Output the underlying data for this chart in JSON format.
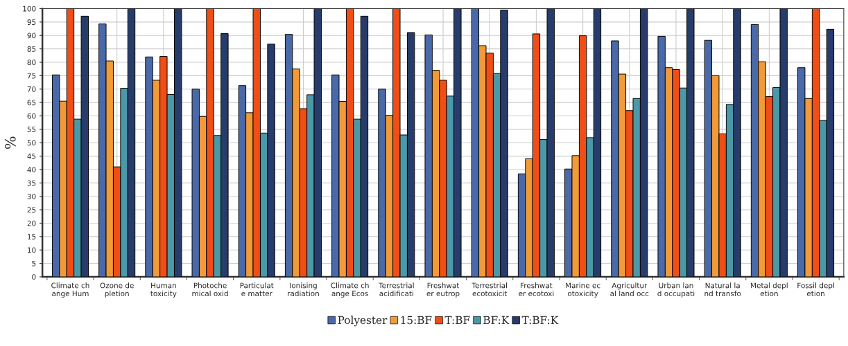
{
  "chart_data": {
    "type": "bar",
    "ylabel": "%",
    "categories": [
      "Climate ch\nange Hum",
      "Ozone de\npletion",
      "Human\ntoxicity",
      "Photoche\nmical oxid",
      "Particulat\ne matter",
      "Ionising\nradiation",
      "Climate ch\nange Ecos",
      "Terrestrial\nacidificati",
      "Freshwat\ner eutrop",
      "Terrestrial\necotoxicit",
      "Freshwat\ner ecotoxi",
      "Marine ec\notoxicity",
      "Agricultur\nal land occ",
      "Urban lan\nd occupati",
      "Natural la\nnd transfo",
      "Metal depl\netion",
      "Fossil depl\netion"
    ],
    "series": [
      {
        "name": "Polyester",
        "color": "#4a69a8",
        "values": [
          75.3,
          94.3,
          82,
          70,
          71.3,
          90.4,
          75.3,
          70,
          90.2,
          100,
          38.4,
          40.2,
          88,
          89.7,
          88.2,
          94.1,
          78
        ]
      },
      {
        "name": "15:BF",
        "color": "#f29a38",
        "values": [
          65.5,
          80.5,
          73.3,
          59.8,
          61.2,
          77.5,
          65.4,
          60.2,
          77,
          86.2,
          44,
          45.2,
          75.6,
          78,
          75,
          80.2,
          66.5
        ]
      },
      {
        "name": "T:BF",
        "color": "#f04e16",
        "values": [
          100,
          41,
          82.2,
          100,
          100,
          62.7,
          100,
          100,
          73.3,
          83.4,
          90.6,
          89.9,
          62,
          77.3,
          53.3,
          67.2,
          100
        ]
      },
      {
        "name": "BF:K",
        "color": "#4b98a8",
        "values": [
          58.8,
          70.3,
          68,
          52.7,
          53.6,
          67.9,
          58.8,
          52.9,
          67.4,
          75.8,
          51.2,
          51.9,
          66.5,
          70.4,
          64.3,
          70.6,
          58.3
        ]
      },
      {
        "name": "T:BF:K",
        "color": "#273c6a",
        "values": [
          97.2,
          100,
          100,
          90.7,
          86.8,
          100,
          97.2,
          91.1,
          100,
          99.5,
          100,
          100,
          100,
          100,
          100,
          100,
          92.3
        ]
      }
    ],
    "ylim": [
      0,
      100
    ],
    "yticks": [
      0,
      5,
      10,
      15,
      20,
      25,
      30,
      35,
      40,
      45,
      50,
      55,
      60,
      65,
      70,
      75,
      80,
      85,
      90,
      95,
      100
    ],
    "grid": true,
    "legend": "bottom"
  }
}
